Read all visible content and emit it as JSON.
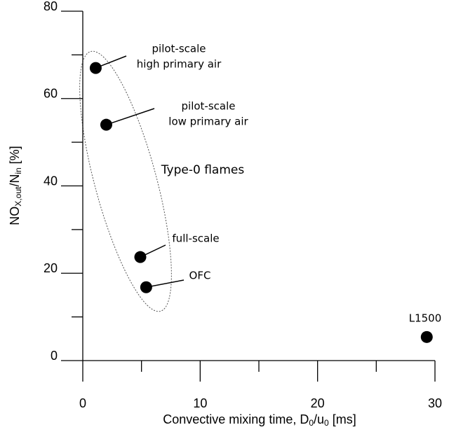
{
  "chart_data": {
    "type": "scatter",
    "x_label": {
      "parts": [
        "Convective mixing time, D",
        "0",
        "/u",
        "0",
        " [ms]"
      ]
    },
    "y_label": {
      "parts": [
        "NO",
        "X,out",
        "/N",
        "in",
        " [%]"
      ]
    },
    "xlim": [
      0,
      30
    ],
    "xticks": [
      0,
      10,
      20,
      30
    ],
    "minor_xticks": [
      5,
      15,
      25
    ],
    "ylim": [
      0,
      80
    ],
    "yticks": [
      0,
      20,
      40,
      60,
      80
    ],
    "minor_yticks": [
      10,
      30,
      50,
      70
    ],
    "series": [
      {
        "color": "#000000",
        "x": [
          1.1,
          2.0,
          4.9,
          5.4,
          29.3
        ],
        "values": [
          67,
          54,
          23.7,
          16.8,
          5.4
        ]
      }
    ],
    "point_labels": [
      [
        "pilot-scale",
        "high primary air"
      ],
      [
        "pilot-scale",
        "low primary air"
      ],
      [
        "full-scale"
      ],
      [
        "OFC"
      ],
      [
        "L1500"
      ]
    ],
    "annotations": [
      "Type-0 flames"
    ]
  }
}
